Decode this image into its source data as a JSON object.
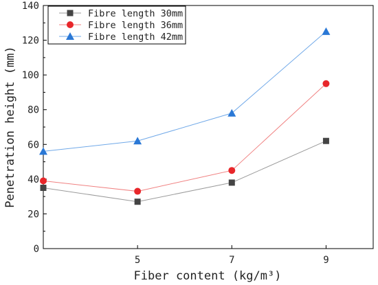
{
  "chart_data": {
    "type": "line",
    "x": [
      3,
      5,
      7,
      9
    ],
    "xticks": [
      5,
      7,
      9
    ],
    "xlim": [
      3,
      10
    ],
    "ylim": [
      0,
      140
    ],
    "yticks": [
      0,
      20,
      40,
      60,
      80,
      100,
      120,
      140
    ],
    "xlabel": "Fiber content (kg/m³)",
    "ylabel": "Penetration height (mm)",
    "legend_position": "top-left",
    "grid": false,
    "series": [
      {
        "name": "Fibre length 30mm",
        "values": [
          35,
          27,
          38,
          62
        ],
        "color": "#444444",
        "line_color": "#9a9a9a",
        "marker": "square"
      },
      {
        "name": "Fibre length 36mm",
        "values": [
          39,
          33,
          45,
          95
        ],
        "color": "#e8262a",
        "line_color": "#f08080",
        "marker": "circle"
      },
      {
        "name": "Fibre length 42mm",
        "values": [
          56,
          62,
          78,
          125
        ],
        "color": "#2a78d6",
        "line_color": "#6fa8e8",
        "marker": "triangle"
      }
    ]
  }
}
